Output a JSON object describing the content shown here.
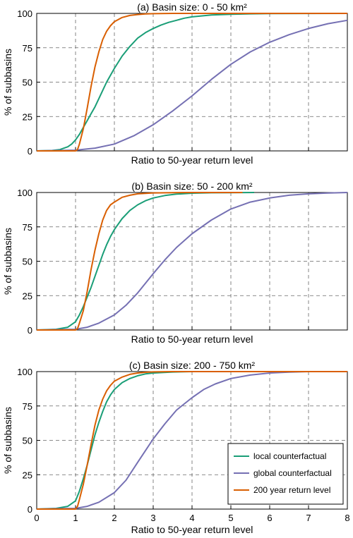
{
  "chart_data": [
    {
      "type": "line",
      "title": "(a) Basin size: 0 - 50 km²",
      "xlabel": "Ratio to 50-year return level",
      "ylabel": "% of subbasins",
      "xlim": [
        0,
        8
      ],
      "ylim": [
        0,
        100
      ],
      "xticks": [
        "0",
        "1",
        "2",
        "3",
        "4",
        "5",
        "6",
        "7",
        "8"
      ],
      "yticks": [
        "0",
        "25",
        "50",
        "75",
        "100"
      ],
      "show_xtick_labels": false,
      "grid": true,
      "series": [
        {
          "name": "local counterfactual",
          "color": "#1a9e77",
          "x": [
            0,
            0.4,
            0.6,
            0.8,
            0.9,
            1.0,
            1.1,
            1.2,
            1.3,
            1.4,
            1.5,
            1.6,
            1.7,
            1.8,
            1.9,
            2.0,
            2.2,
            2.4,
            2.6,
            2.8,
            3.0,
            3.2,
            3.4,
            3.6,
            3.8,
            4.0,
            4.5,
            5.0,
            5.5,
            6.0,
            8.0
          ],
          "y": [
            0,
            0.3,
            1,
            3,
            5,
            8,
            12,
            17,
            22,
            27,
            32,
            38,
            44,
            50,
            55,
            60,
            69,
            76,
            82,
            86,
            89,
            91.5,
            93.5,
            95,
            96.5,
            97.5,
            98.8,
            99.4,
            99.7,
            99.9,
            100
          ]
        },
        {
          "name": "global counterfactual",
          "color": "#7570b3",
          "x": [
            0,
            1.0,
            1.5,
            2.0,
            2.5,
            3.0,
            3.5,
            4.0,
            4.5,
            5.0,
            5.5,
            6.0,
            6.5,
            7.0,
            7.5,
            8.0
          ],
          "y": [
            0,
            0.5,
            2,
            5,
            11,
            19,
            29,
            40,
            52,
            63,
            72,
            79,
            84.5,
            89,
            92.5,
            95
          ]
        },
        {
          "name": "200 year return level",
          "color": "#d95f02",
          "x": [
            0,
            1.0,
            1.05,
            1.1,
            1.2,
            1.3,
            1.4,
            1.5,
            1.6,
            1.7,
            1.8,
            1.9,
            2.0,
            2.2,
            2.4,
            2.6,
            2.8,
            3.0,
            3.5,
            4.0,
            8.0
          ],
          "y": [
            0,
            0,
            1,
            5,
            16,
            31,
            47,
            61,
            72,
            81,
            87,
            91,
            94,
            97,
            98.5,
            99.2,
            99.6,
            99.8,
            100,
            100,
            100
          ]
        }
      ]
    },
    {
      "type": "line",
      "title": "(b) Basin size: 50 - 200 km²",
      "xlabel": "Ratio to 50-year return level",
      "ylabel": "% of subbasins",
      "xlim": [
        0,
        8
      ],
      "ylim": [
        0,
        100
      ],
      "xticks": [
        "0",
        "1",
        "2",
        "3",
        "4",
        "5",
        "6",
        "7",
        "8"
      ],
      "yticks": [
        "0",
        "25",
        "50",
        "75",
        "100"
      ],
      "show_xtick_labels": false,
      "grid": true,
      "series": [
        {
          "name": "local counterfactual",
          "color": "#1a9e77",
          "x": [
            0,
            0.5,
            0.8,
            1.0,
            1.1,
            1.2,
            1.3,
            1.4,
            1.5,
            1.6,
            1.7,
            1.8,
            1.9,
            2.0,
            2.2,
            2.4,
            2.6,
            2.8,
            3.0,
            3.3,
            3.6,
            4.0,
            4.5,
            5.0,
            5.6
          ],
          "y": [
            0,
            0.5,
            2,
            6,
            11,
            17,
            24,
            31,
            39,
            47,
            55,
            62,
            68,
            73,
            81,
            87,
            91,
            94,
            96,
            97.8,
            98.8,
            99.5,
            99.8,
            99.9,
            100
          ]
        },
        {
          "name": "global counterfactual",
          "color": "#7570b3",
          "x": [
            0,
            1.0,
            1.3,
            1.6,
            2.0,
            2.3,
            2.6,
            3.0,
            3.3,
            3.6,
            4.0,
            4.5,
            5.0,
            5.5,
            6.0,
            6.5,
            7.0,
            7.5,
            8.0
          ],
          "y": [
            0,
            0.5,
            2,
            5,
            11,
            18,
            27,
            41,
            51,
            60,
            70,
            80,
            88,
            93,
            96,
            98,
            99,
            99.6,
            100
          ]
        },
        {
          "name": "200 year return level",
          "color": "#d95f02",
          "x": [
            0,
            1.0,
            1.05,
            1.1,
            1.2,
            1.3,
            1.4,
            1.5,
            1.6,
            1.7,
            1.8,
            1.9,
            2.0,
            2.2,
            2.4,
            2.6,
            2.8,
            3.0,
            3.5,
            4.0,
            4.5,
            5.0,
            5.3
          ],
          "y": [
            0,
            0,
            1,
            5,
            14,
            28,
            44,
            58,
            70,
            80,
            87,
            91,
            93,
            96.5,
            98,
            99,
            99.4,
            99.7,
            99.9,
            100,
            100,
            100,
            100
          ]
        }
      ]
    },
    {
      "type": "line",
      "title": "(c) Basin size: 200 - 750 km²",
      "xlabel": "Ratio to 50-year return level",
      "ylabel": "% of subbasins",
      "xlim": [
        0,
        8
      ],
      "ylim": [
        0,
        100
      ],
      "xticks": [
        "0",
        "1",
        "2",
        "3",
        "4",
        "5",
        "6",
        "7",
        "8"
      ],
      "yticks": [
        "0",
        "25",
        "50",
        "75",
        "100"
      ],
      "show_xtick_labels": true,
      "grid": true,
      "legend_position": "bottom-right",
      "series": [
        {
          "name": "local counterfactual",
          "color": "#1a9e77",
          "x": [
            0,
            0.5,
            0.8,
            1.0,
            1.1,
            1.2,
            1.3,
            1.4,
            1.5,
            1.6,
            1.7,
            1.8,
            1.9,
            2.0,
            2.2,
            2.4,
            2.6,
            2.8,
            3.0,
            3.5,
            4.0,
            5.0,
            8.0
          ],
          "y": [
            0,
            0.5,
            2,
            6,
            13,
            22,
            32,
            43,
            54,
            63,
            71,
            78,
            83,
            87,
            92,
            95,
            97,
            98.3,
            99,
            99.7,
            100,
            100,
            100
          ]
        },
        {
          "name": "global counterfactual",
          "color": "#7570b3",
          "x": [
            0,
            1.0,
            1.3,
            1.6,
            2.0,
            2.3,
            2.6,
            3.0,
            3.3,
            3.6,
            4.0,
            4.3,
            4.6,
            5.0,
            5.5,
            6.0,
            6.5,
            7.0,
            8.0
          ],
          "y": [
            0,
            0.5,
            2,
            5,
            12,
            21,
            34,
            51,
            62,
            72,
            81,
            87,
            91,
            95,
            97.5,
            99,
            99.6,
            100,
            100
          ]
        },
        {
          "name": "200 year return level",
          "color": "#d95f02",
          "x": [
            0,
            1.0,
            1.05,
            1.1,
            1.2,
            1.3,
            1.4,
            1.5,
            1.6,
            1.7,
            1.8,
            1.9,
            2.0,
            2.2,
            2.4,
            2.6,
            2.8,
            3.0,
            3.5,
            4.0,
            5.0,
            8.0
          ],
          "y": [
            0,
            0,
            2,
            7,
            18,
            32,
            47,
            61,
            72,
            80,
            86,
            90,
            93,
            96,
            98,
            99,
            99.5,
            99.8,
            100,
            100,
            100,
            100
          ]
        }
      ]
    }
  ],
  "legend": {
    "entries": [
      {
        "label": "local counterfactual",
        "color": "#1a9e77"
      },
      {
        "label": "global counterfactual",
        "color": "#7570b3"
      },
      {
        "label": "200 year return level",
        "color": "#d95f02"
      }
    ]
  }
}
